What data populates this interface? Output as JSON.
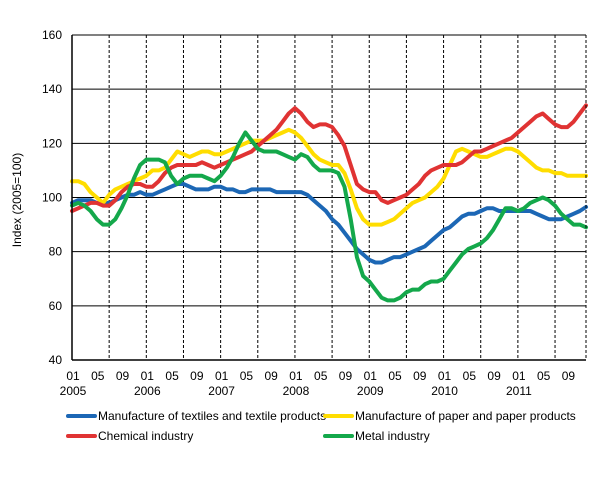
{
  "chart_data": {
    "type": "line",
    "ylabel": "Index (2005=100)",
    "xlabel": "",
    "ylim": [
      40,
      160
    ],
    "yticks": [
      40,
      60,
      80,
      100,
      120,
      140,
      160
    ],
    "x_start": "2005-01",
    "x_end": "2011-12",
    "x_month_labels": [
      "01",
      "05",
      "09",
      "01",
      "05",
      "09",
      "01",
      "05",
      "09",
      "01",
      "05",
      "09",
      "01",
      "05",
      "09",
      "01",
      "05",
      "09",
      "01",
      "05",
      "09"
    ],
    "x_year_labels": [
      "2005",
      "2006",
      "2007",
      "2008",
      "2009",
      "2010",
      "2011"
    ],
    "grid": "horizontal solid, vertical dashed",
    "legend_position": "bottom",
    "series": [
      {
        "name": "Manufacture of textiles and textile products",
        "color": "#1c67b5",
        "values": [
          98,
          99,
          99,
          99,
          98,
          98,
          98,
          99,
          100,
          101,
          101,
          102,
          101,
          101,
          102,
          103,
          104,
          105,
          105,
          104,
          103,
          103,
          103,
          104,
          104,
          103,
          103,
          102,
          102,
          103,
          103,
          103,
          103,
          102,
          102,
          102,
          102,
          102,
          101,
          99,
          97,
          95,
          92,
          90,
          87,
          84,
          81,
          79,
          77,
          76,
          76,
          77,
          78,
          78,
          79,
          80,
          81,
          82,
          84,
          86,
          88,
          89,
          91,
          93,
          94,
          94,
          95,
          96,
          96,
          95,
          95,
          95,
          95,
          95,
          95,
          94,
          93,
          92,
          92,
          92,
          93,
          94,
          95,
          96.5
        ]
      },
      {
        "name": "Manufacture of paper and paper products",
        "color": "#ffdd00",
        "values": [
          106,
          106,
          105,
          102,
          100,
          98,
          101,
          103,
          104,
          105,
          106,
          107,
          108,
          110,
          110,
          111,
          114,
          117,
          116,
          115,
          116,
          117,
          117,
          116,
          116,
          117,
          118,
          119,
          120,
          121,
          121,
          121,
          122,
          123,
          124,
          125,
          124,
          122,
          119,
          116,
          114,
          113,
          112,
          112,
          109,
          103,
          96,
          92,
          90,
          90,
          90,
          91,
          92,
          94,
          96,
          98,
          99,
          100,
          102,
          104,
          107,
          112,
          117,
          118,
          117,
          116,
          115,
          115,
          116,
          117,
          118,
          118,
          117,
          115,
          113,
          111,
          110,
          110,
          109,
          109,
          108,
          108,
          108,
          108
        ]
      },
      {
        "name": "Chemical industry",
        "color": "#e03333",
        "values": [
          95,
          96,
          97,
          98,
          98,
          97,
          97,
          99,
          102,
          104,
          105,
          105,
          104,
          104,
          106,
          109,
          111,
          112,
          112,
          112,
          112,
          113,
          112,
          111,
          112,
          113,
          114,
          115,
          116,
          117,
          119,
          121,
          123,
          125,
          128,
          131,
          133,
          131,
          128,
          126,
          127,
          127,
          126,
          123,
          119,
          112,
          105,
          103,
          102,
          102,
          99,
          98,
          99,
          100,
          101,
          103,
          105,
          108,
          110,
          111,
          112,
          112,
          112,
          113,
          115,
          117,
          117,
          118,
          119,
          120,
          121,
          122,
          124,
          126,
          128,
          130,
          131,
          129,
          127,
          126,
          126,
          128,
          131,
          134
        ]
      },
      {
        "name": "Metal industry",
        "color": "#14a84b",
        "values": [
          97,
          98,
          97,
          95,
          92,
          90,
          90,
          92,
          96,
          101,
          107,
          112,
          114,
          114,
          114,
          113,
          108,
          105,
          107,
          108,
          108,
          108,
          107,
          106,
          108,
          111,
          115,
          120,
          124,
          121,
          118,
          117,
          117,
          117,
          116,
          115,
          114,
          116,
          115,
          112,
          110,
          110,
          110,
          109,
          104,
          92,
          78,
          71,
          69,
          66,
          63,
          62,
          62,
          63,
          65,
          66,
          66,
          68,
          69,
          69,
          70,
          73,
          76,
          79,
          81,
          82,
          83,
          85,
          88,
          92,
          96,
          96,
          95,
          96,
          98,
          99,
          100,
          99,
          97,
          94,
          92,
          90,
          90,
          89
        ]
      }
    ]
  }
}
